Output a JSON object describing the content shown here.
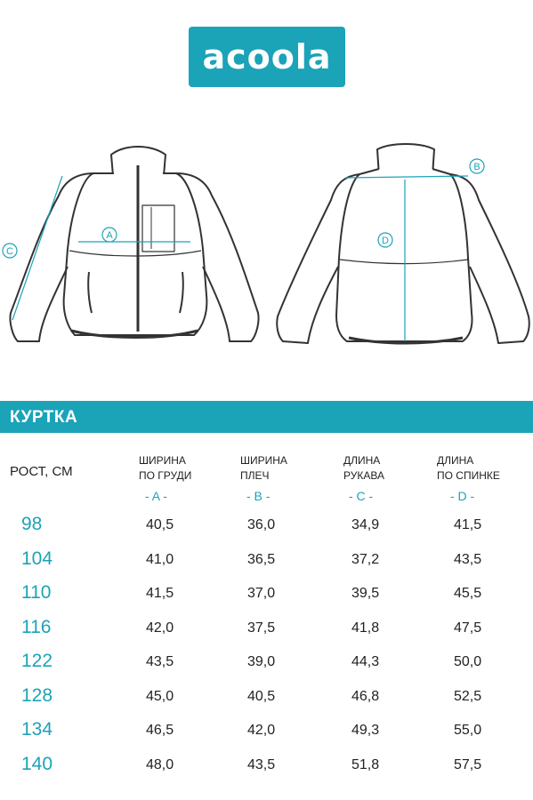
{
  "logo": {
    "text": "acoola"
  },
  "colors": {
    "accent": "#1ba3b8",
    "outline": "#333333"
  },
  "drawings": {
    "front_labels": [
      "A",
      "C"
    ],
    "back_labels": [
      "B",
      "D"
    ]
  },
  "banner": {
    "title": "КУРТКА"
  },
  "table": {
    "height_header": "РОСТ, СМ",
    "columns": [
      {
        "line1": "ШИРИНА",
        "line2": "ПО ГРУДИ",
        "letter": "- A -"
      },
      {
        "line1": "ШИРИНА",
        "line2": "ПЛЕЧ",
        "letter": "- B -"
      },
      {
        "line1": "ДЛИНА",
        "line2": "РУКАВА",
        "letter": "- C -"
      },
      {
        "line1": "ДЛИНА",
        "line2": "ПО СПИНКЕ",
        "letter": "- D -"
      }
    ],
    "rows": [
      {
        "height": "98",
        "values": [
          "40,5",
          "36,0",
          "34,9",
          "41,5"
        ]
      },
      {
        "height": "104",
        "values": [
          "41,0",
          "36,5",
          "37,2",
          "43,5"
        ]
      },
      {
        "height": "110",
        "values": [
          "41,5",
          "37,0",
          "39,5",
          "45,5"
        ]
      },
      {
        "height": "116",
        "values": [
          "42,0",
          "37,5",
          "41,8",
          "47,5"
        ]
      },
      {
        "height": "122",
        "values": [
          "43,5",
          "39,0",
          "44,3",
          "50,0"
        ]
      },
      {
        "height": "128",
        "values": [
          "45,0",
          "40,5",
          "46,8",
          "52,5"
        ]
      },
      {
        "height": "134",
        "values": [
          "46,5",
          "42,0",
          "49,3",
          "55,0"
        ]
      },
      {
        "height": "140",
        "values": [
          "48,0",
          "43,5",
          "51,8",
          "57,5"
        ]
      }
    ]
  }
}
